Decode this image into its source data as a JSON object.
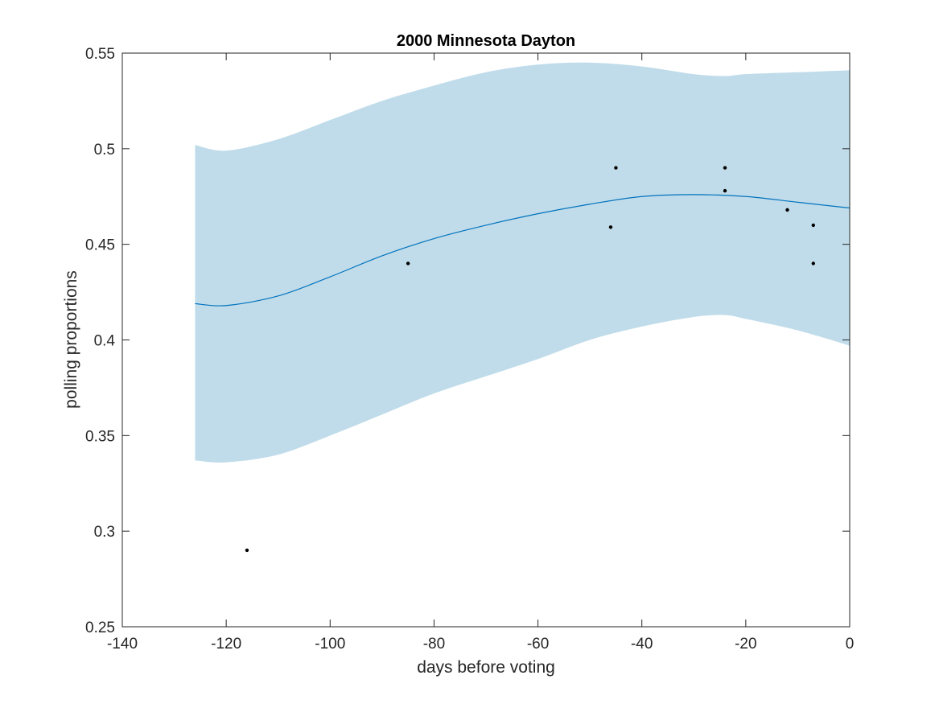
{
  "chart_data": {
    "type": "line",
    "title": "2000 Minnesota Dayton",
    "xlabel": "days before voting",
    "ylabel": "polling proportions",
    "xlim": [
      -140,
      0
    ],
    "ylim": [
      0.25,
      0.55
    ],
    "xticks": [
      -140,
      -120,
      -100,
      -80,
      -60,
      -40,
      -20,
      0
    ],
    "yticks": [
      0.25,
      0.3,
      0.35,
      0.4,
      0.45,
      0.5,
      0.55
    ],
    "xtick_labels": [
      "-140",
      "-120",
      "-100",
      "-80",
      "-60",
      "-40",
      "-20",
      "0"
    ],
    "ytick_labels": [
      "0.25",
      "0.3",
      "0.35",
      "0.4",
      "0.45",
      "0.5",
      "0.55"
    ],
    "grid": false,
    "colors": {
      "band": "#c0dcea",
      "line": "#0072bd",
      "points": "#000000",
      "axis": "#262626"
    },
    "band": {
      "x": [
        -126,
        -120,
        -110,
        -100,
        -90,
        -80,
        -70,
        -60,
        -50,
        -40,
        -30,
        -24,
        -20,
        -10,
        0
      ],
      "upper": [
        0.502,
        0.499,
        0.505,
        0.515,
        0.525,
        0.533,
        0.54,
        0.544,
        0.545,
        0.543,
        0.539,
        0.538,
        0.539,
        0.54,
        0.541
      ],
      "lower": [
        0.337,
        0.336,
        0.34,
        0.35,
        0.361,
        0.372,
        0.381,
        0.39,
        0.4,
        0.407,
        0.412,
        0.413,
        0.411,
        0.405,
        0.397
      ]
    },
    "series": [
      {
        "type": "line",
        "x": [
          -126,
          -120,
          -110,
          -100,
          -90,
          -80,
          -70,
          -60,
          -50,
          -40,
          -30,
          -20,
          -10,
          0
        ],
        "y": [
          0.419,
          0.418,
          0.423,
          0.433,
          0.444,
          0.453,
          0.46,
          0.466,
          0.471,
          0.475,
          0.476,
          0.475,
          0.472,
          0.469
        ]
      },
      {
        "type": "scatter",
        "x": [
          -116,
          -85,
          -46,
          -45,
          -24,
          -24,
          -12,
          -7,
          -7
        ],
        "y": [
          0.29,
          0.44,
          0.459,
          0.49,
          0.49,
          0.478,
          0.468,
          0.46,
          0.44
        ]
      }
    ]
  }
}
